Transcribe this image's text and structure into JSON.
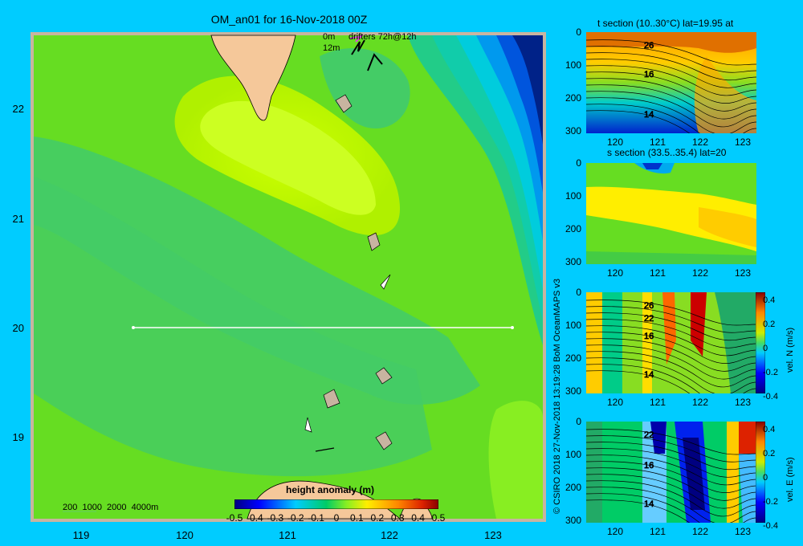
{
  "map": {
    "title": "OM_an01 for 16-Nov-2018 00Z",
    "drifters_0m": "0m",
    "drifters_12m": "12m",
    "drifters_label": "drifters 72h@12h",
    "depth_label": "200  1000  2000  4000m",
    "colorbar_title": "height anomaly (m)",
    "lat_ticks": [
      "22",
      "21",
      "20",
      "19"
    ],
    "lon_ticks": [
      "119",
      "120",
      "121",
      "122",
      "123"
    ],
    "colorbar_ticks": [
      "-0.5",
      "-0.4",
      "-0.3",
      "-0.2",
      "-0.1",
      "0",
      "0.1",
      "0.2",
      "0.3",
      "0.4",
      "0.5"
    ],
    "colors": {
      "land": "#f5c89a",
      "frame": "#c8b4a0",
      "background": "#00ccff"
    }
  },
  "panels": [
    {
      "title": "t section (10..30°C) lat=19.95 at",
      "y_ticks": [
        "0",
        "100",
        "200",
        "300"
      ],
      "x_ticks": [
        "120",
        "121",
        "122",
        "123"
      ],
      "contour_labels": [
        "26",
        "16",
        "14"
      ]
    },
    {
      "title": "s section (33.5..35.4) lat=20",
      "y_ticks": [
        "0",
        "100",
        "200",
        "300"
      ],
      "x_ticks": [
        "120",
        "121",
        "122",
        "123"
      ],
      "contour_labels": []
    },
    {
      "title": "",
      "y_ticks": [
        "0",
        "100",
        "200",
        "300"
      ],
      "x_ticks": [
        "120",
        "121",
        "122",
        "123"
      ],
      "contour_labels": [
        "26",
        "22",
        "16",
        "14"
      ],
      "colorbar_label": "vel. N (m/s)",
      "colorbar_ticks": [
        "0.4",
        "0.2",
        "0",
        "-0.2",
        "-0.4"
      ]
    },
    {
      "title": "",
      "y_ticks": [
        "0",
        "100",
        "200",
        "300"
      ],
      "x_ticks": [
        "120",
        "121",
        "122",
        "123"
      ],
      "contour_labels": [
        "22",
        "16",
        "14"
      ],
      "colorbar_label": "vel. E (m/s)",
      "colorbar_ticks": [
        "0.4",
        "0.2",
        "0",
        "-0.2",
        "-0.4"
      ]
    }
  ],
  "credit": "© CSIRO 2018   27-Nov-2018 13:19:28 BoM OceanMAPS v3",
  "chart_data": {
    "type": "heatmap",
    "title": "OM_an01 for 16-Nov-2018 00Z",
    "variable": "height anomaly (m)",
    "xlim": [
      118.5,
      123.5
    ],
    "ylim": [
      18.3,
      22.7
    ],
    "clim": [
      -0.5,
      0.5
    ],
    "section_line": {
      "lat": 20,
      "lon": [
        119.5,
        123.2
      ]
    }
  }
}
